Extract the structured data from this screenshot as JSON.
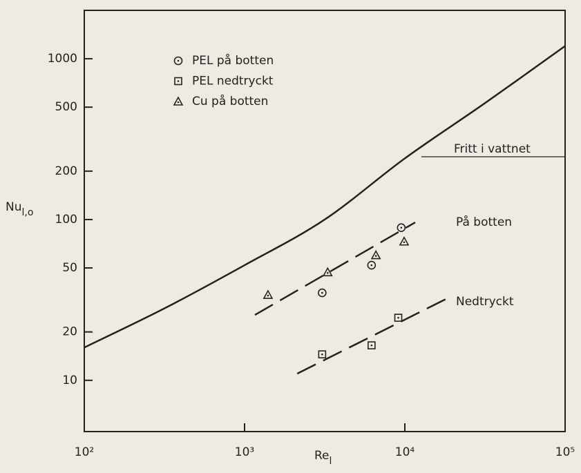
{
  "chart_data": {
    "type": "scatter",
    "xlabel": {
      "base": "Re",
      "sub": "l"
    },
    "ylabel": {
      "base": "Nu",
      "sub": "l,o"
    },
    "log_x": true,
    "log_y": true,
    "xlim": [
      100,
      100000
    ],
    "ylim": [
      4.8,
      2000
    ],
    "xticks": [
      {
        "value": 100,
        "label": "10²"
      },
      {
        "value": 1000,
        "label": "10³"
      },
      {
        "value": 10000,
        "label": "10⁴"
      },
      {
        "value": 100000,
        "label": "10⁵"
      }
    ],
    "yticks": [
      10,
      20,
      50,
      100,
      200,
      500,
      1000
    ],
    "legend": "top-left",
    "series": [
      {
        "name": "PEL på botten",
        "mode": "markers",
        "marker": "circle",
        "color": "#222222",
        "x": [
          3050,
          6200,
          9500
        ],
        "values": [
          35,
          52,
          89
        ]
      },
      {
        "name": "PEL nedtryckt",
        "mode": "markers",
        "marker": "square",
        "color": "#222222",
        "x": [
          3050,
          6200,
          9100
        ],
        "values": [
          14.5,
          16.5,
          24.5
        ]
      },
      {
        "name": "Cu på botten",
        "mode": "markers",
        "marker": "triangle",
        "color": "#222222",
        "x": [
          1400,
          3300,
          6600,
          9900
        ],
        "values": [
          34,
          47,
          60,
          73
        ]
      },
      {
        "name": "Fritt i vattnet",
        "mode": "line",
        "dash": false,
        "color": "#222222",
        "x": [
          100,
          316,
          1000,
          3162,
          10000,
          31623,
          100000
        ],
        "values": [
          16,
          28,
          52,
          100,
          240,
          530,
          1200
        ]
      },
      {
        "name": "På botten",
        "mode": "line",
        "dash": true,
        "color": "#222222",
        "x": [
          1160,
          11600
        ],
        "values": [
          25.5,
          96
        ]
      },
      {
        "name": "Nedtryckt",
        "mode": "line",
        "dash": true,
        "color": "#222222",
        "x": [
          2130,
          18000
        ],
        "values": [
          11,
          32
        ]
      }
    ]
  }
}
